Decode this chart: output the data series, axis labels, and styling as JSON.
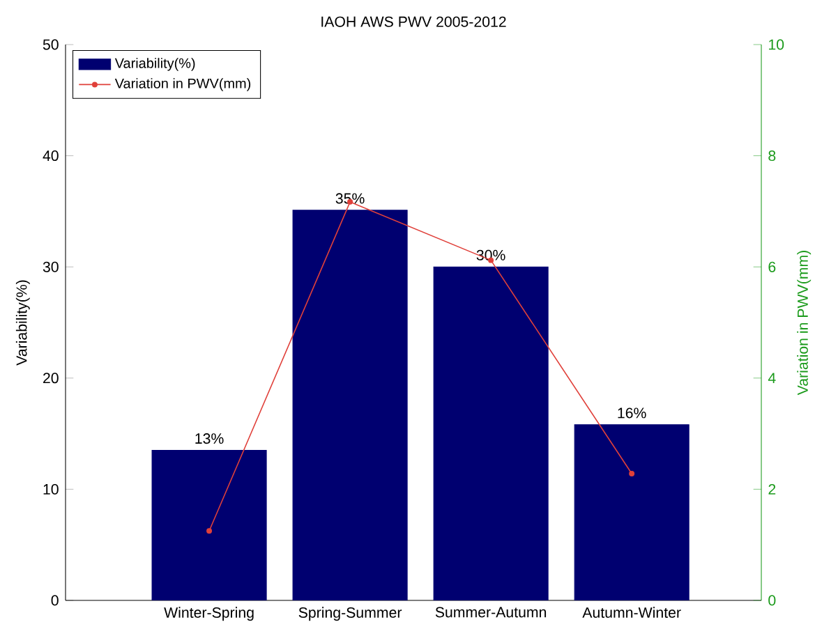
{
  "chart_data": {
    "type": "bar",
    "title": "IAOH AWS PWV 2005-2012",
    "ylabel": "Variability(%)",
    "y2label": "Variation in PWV(mm)",
    "categories": [
      "Winter-Spring",
      "Spring-Summer",
      "Summer-Autumn",
      "Autumn-Winter"
    ],
    "series": [
      {
        "name": "Variability(%)",
        "color": "#000070",
        "values": [
          13.5,
          35.1,
          30,
          15.8
        ],
        "value_labels": [
          "13%",
          "35%",
          "30%",
          "16%"
        ]
      },
      {
        "name": "Variation in PWV(mm)",
        "type": "line",
        "axis": "y2",
        "color": "#e0403a",
        "marker": "circle",
        "values": [
          1.25,
          7.17,
          6.12,
          2.28
        ]
      }
    ],
    "ylim": [
      0,
      50
    ],
    "yticks": [
      0,
      10,
      20,
      30,
      40,
      50
    ],
    "y2lim": [
      0,
      10
    ],
    "y2ticks": [
      0,
      2,
      4,
      6,
      8,
      10
    ],
    "legend": "top left",
    "grid": false
  }
}
